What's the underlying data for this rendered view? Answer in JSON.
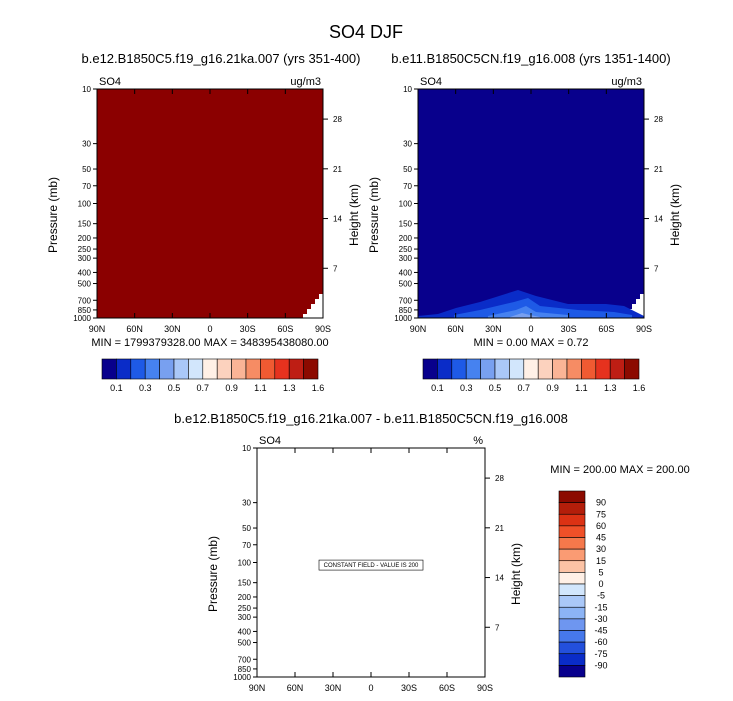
{
  "figure": {
    "title": "SO4 DJF"
  },
  "chart_data": [
    {
      "type": "contour",
      "panel": "left",
      "title": "b.e12.B1850C5.f19_g16.21ka.007 (yrs 351-400)",
      "variable": "SO4",
      "units": "ug/m3",
      "ylabel": "Pressure (mb)",
      "y2label": "Height (km)",
      "xticks": [
        "90N",
        "60N",
        "30N",
        "0",
        "30S",
        "60S",
        "90S"
      ],
      "yticks": [
        "10",
        "30",
        "50",
        "70",
        "100",
        "150",
        "200",
        "250",
        "300",
        "400",
        "500",
        "700",
        "850",
        "1000"
      ],
      "y2ticks": [
        "28",
        "21",
        "14",
        "7"
      ],
      "stats": "MIN = 1799379328.00   MAX = 348395438080.00",
      "fill": "#8b0000",
      "colorbar": {
        "labels": [
          "0.1",
          "0.3",
          "0.5",
          "0.7",
          "0.9",
          "1.1",
          "1.3",
          "1.6"
        ],
        "colors": [
          "#08008c",
          "#0a2cc8",
          "#1e5ae6",
          "#4682f0",
          "#78a0f0",
          "#aac8f8",
          "#d2e6fc",
          "#fff0e6",
          "#fcd2be",
          "#fab496",
          "#f68c64",
          "#f05a32",
          "#e6321e",
          "#be1e14",
          "#8c0a00"
        ]
      }
    },
    {
      "type": "contour",
      "panel": "right",
      "title": "b.e11.B1850C5CN.f19_g16.008 (yrs 1351-1400)",
      "variable": "SO4",
      "units": "ug/m3",
      "ylabel": "Pressure (mb)",
      "y2label": "Height (km)",
      "xticks": [
        "90N",
        "60N",
        "30N",
        "0",
        "30S",
        "60S",
        "90S"
      ],
      "yticks": [
        "10",
        "30",
        "50",
        "70",
        "100",
        "150",
        "200",
        "250",
        "300",
        "400",
        "500",
        "700",
        "850",
        "1000"
      ],
      "y2ticks": [
        "28",
        "21",
        "14",
        "7"
      ],
      "stats": "MIN =  0.00   MAX =  0.72",
      "fill": "#08008c",
      "colorbar": {
        "labels": [
          "0.1",
          "0.3",
          "0.5",
          "0.7",
          "0.9",
          "1.1",
          "1.3",
          "1.6"
        ],
        "colors": [
          "#08008c",
          "#0a2cc8",
          "#1e5ae6",
          "#4682f0",
          "#78a0f0",
          "#aac8f8",
          "#d2e6fc",
          "#fff0e6",
          "#fcd2be",
          "#fab496",
          "#f68c64",
          "#f05a32",
          "#e6321e",
          "#be1e14",
          "#8c0a00"
        ]
      }
    },
    {
      "type": "contour",
      "panel": "difference",
      "title": "b.e12.B1850C5.f19_g16.21ka.007 - b.e11.B1850C5CN.f19_g16.008",
      "variable": "SO4",
      "units": "%",
      "ylabel": "Pressure (mb)",
      "y2label": "Height (km)",
      "xticks": [
        "90N",
        "60N",
        "30N",
        "0",
        "30S",
        "60S",
        "90S"
      ],
      "yticks": [
        "10",
        "30",
        "50",
        "70",
        "100",
        "150",
        "200",
        "250",
        "300",
        "400",
        "500",
        "700",
        "850",
        "1000"
      ],
      "y2ticks": [
        "28",
        "21",
        "14",
        "7"
      ],
      "stats": "MIN = 200.00   MAX = 200.00",
      "annotation": "CONSTANT FIELD - VALUE IS 200",
      "colorbar": {
        "labels": [
          "90",
          "75",
          "60",
          "45",
          "30",
          "15",
          "5",
          "0",
          "-5",
          "-15",
          "-30",
          "-45",
          "-60",
          "-75",
          "-90"
        ],
        "colors": [
          "#8c0a00",
          "#b41e0a",
          "#dc3214",
          "#f05028",
          "#f5784b",
          "#fa9b73",
          "#fcc3a5",
          "#fff0e6",
          "#d2e6fc",
          "#aac8f8",
          "#8cb4f5",
          "#6e96f0",
          "#4678eb",
          "#2350dc",
          "#0a2cc8",
          "#08008c"
        ]
      }
    }
  ]
}
